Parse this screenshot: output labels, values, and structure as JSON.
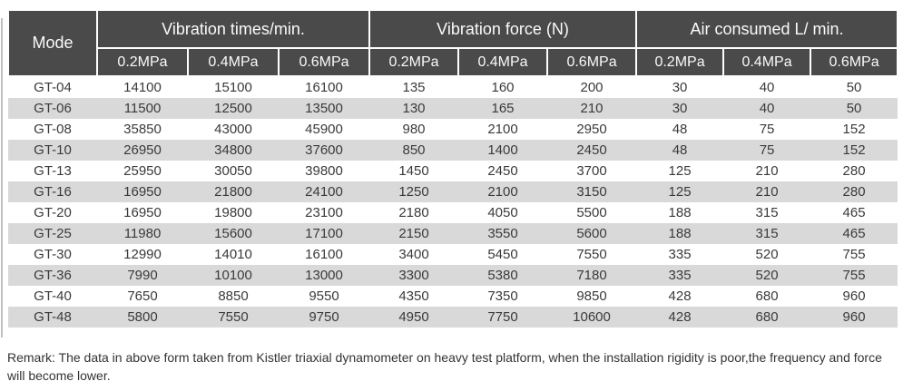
{
  "chart_data": {
    "type": "table",
    "mode_header": "Mode",
    "column_groups": [
      {
        "label": "Vibration times/min.",
        "sub_columns": [
          "0.2MPa",
          "0.4MPa",
          "0.6MPa"
        ]
      },
      {
        "label": "Vibration force (N)",
        "sub_columns": [
          "0.2MPa",
          "0.4MPa",
          "0.6MPa"
        ]
      },
      {
        "label": "Air consumed L/ min.",
        "sub_columns": [
          "0.2MPa",
          "0.4MPa",
          "0.6MPa"
        ]
      }
    ],
    "rows": [
      {
        "mode": "GT-04",
        "values": [
          14100,
          15100,
          16100,
          135,
          160,
          200,
          30,
          40,
          50
        ]
      },
      {
        "mode": "GT-06",
        "values": [
          11500,
          12500,
          13500,
          130,
          165,
          210,
          30,
          40,
          50
        ]
      },
      {
        "mode": "GT-08",
        "values": [
          35850,
          43000,
          45900,
          980,
          2100,
          2950,
          48,
          75,
          152
        ]
      },
      {
        "mode": "GT-10",
        "values": [
          26950,
          34800,
          37600,
          850,
          1400,
          2450,
          48,
          75,
          152
        ]
      },
      {
        "mode": "GT-13",
        "values": [
          25950,
          30050,
          39800,
          1450,
          2450,
          3700,
          125,
          210,
          280
        ]
      },
      {
        "mode": "GT-16",
        "values": [
          16950,
          21800,
          24100,
          1250,
          2100,
          3150,
          125,
          210,
          280
        ]
      },
      {
        "mode": "GT-20",
        "values": [
          16950,
          19800,
          23100,
          2180,
          4050,
          5500,
          188,
          315,
          465
        ]
      },
      {
        "mode": "GT-25",
        "values": [
          11980,
          15600,
          17100,
          2150,
          3550,
          5600,
          188,
          315,
          465
        ]
      },
      {
        "mode": "GT-30",
        "values": [
          12990,
          14010,
          16100,
          3400,
          5450,
          7550,
          335,
          520,
          755
        ]
      },
      {
        "mode": "GT-36",
        "values": [
          7990,
          10100,
          13000,
          3300,
          5380,
          7180,
          335,
          520,
          755
        ]
      },
      {
        "mode": "GT-40",
        "values": [
          7650,
          8850,
          9550,
          4350,
          7350,
          9850,
          428,
          680,
          960
        ]
      },
      {
        "mode": "GT-48",
        "values": [
          5800,
          7550,
          9750,
          4950,
          7750,
          10600,
          428,
          680,
          960
        ]
      }
    ]
  },
  "remark": "Remark: The data in above form taken from Kistler triaxial dynamometer on heavy test platform, when the installation rigidity is poor,the frequency and force will become lower.",
  "colors": {
    "header_bg": "#4a4a4a",
    "header_text": "#fafafa",
    "row_stripe": "#d9d9d9",
    "body_text": "#3a3a3a"
  }
}
